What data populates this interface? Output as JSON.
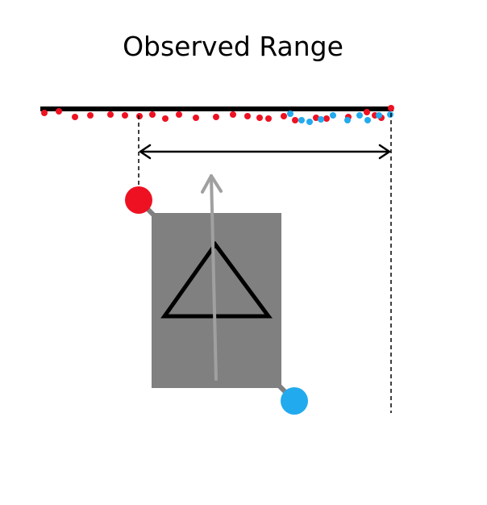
{
  "title": "Observed Range",
  "colors": {
    "red_end": "#ee1122",
    "blue_end": "#22aaee",
    "body": "#808080",
    "arrow": "#a0a0a0",
    "baseline": "#000000"
  },
  "icons": {
    "triangle": "triangle-icon"
  }
}
